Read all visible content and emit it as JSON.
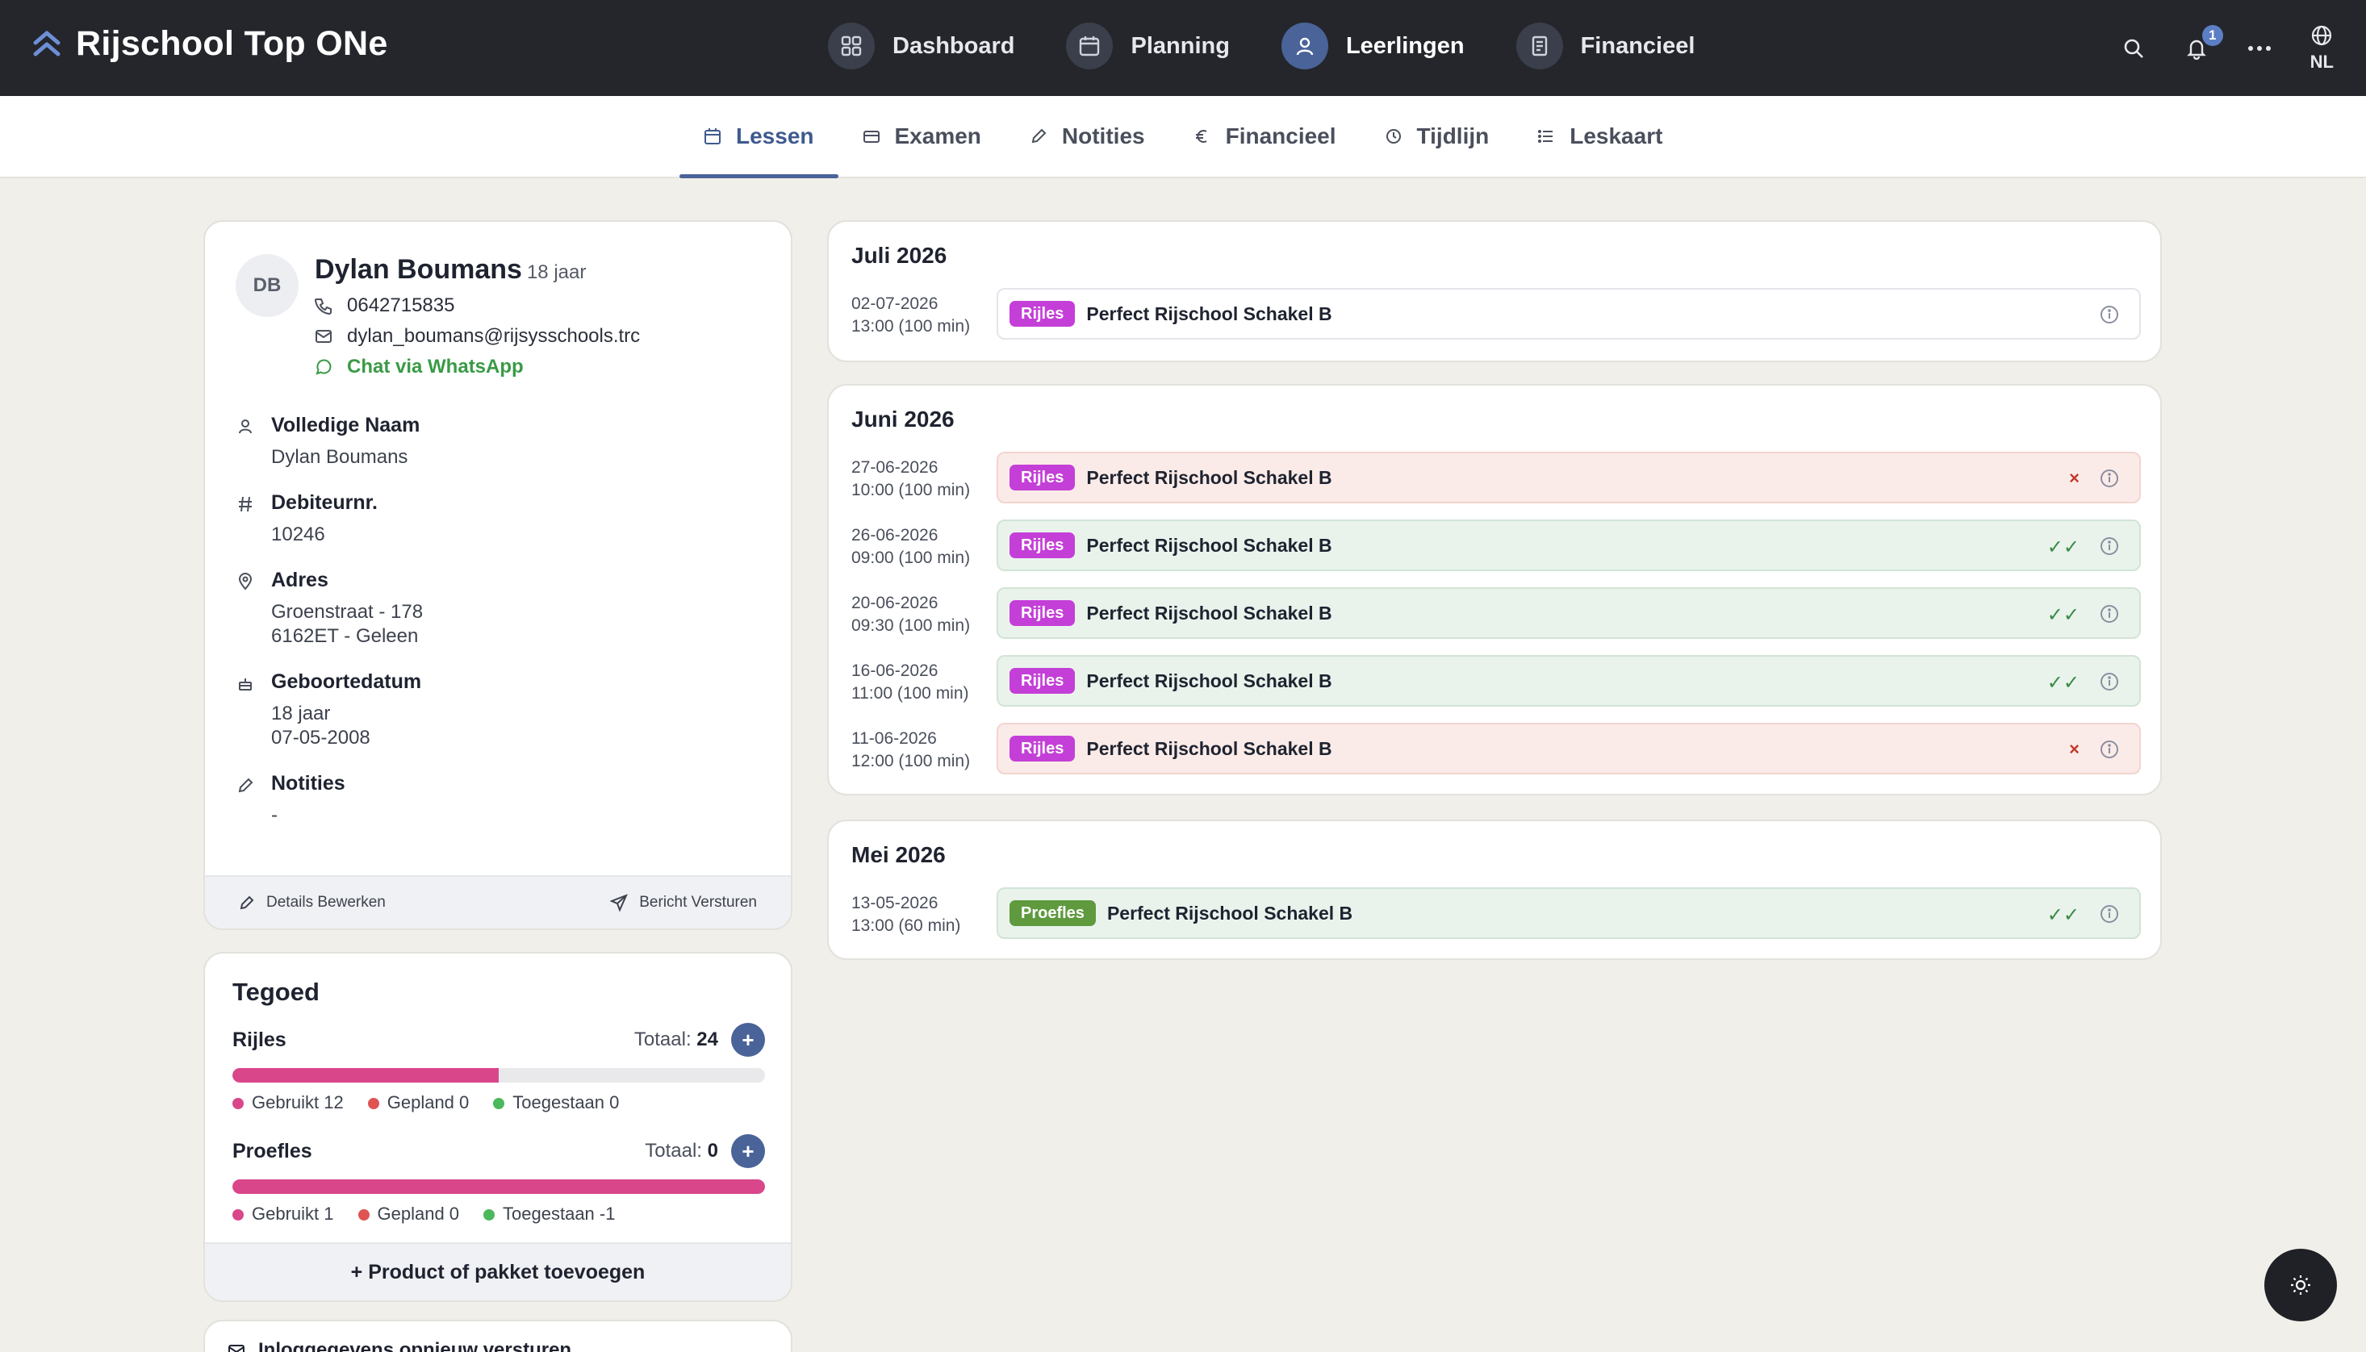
{
  "app": {
    "name": "Rijschool Top ONe"
  },
  "nav": {
    "dashboard": "Dashboard",
    "planning": "Planning",
    "leerlingen": "Leerlingen",
    "financieel": "Financieel"
  },
  "topbar": {
    "notification_count": "1",
    "language": "NL"
  },
  "tabs": {
    "lessen": "Lessen",
    "examen": "Examen",
    "notities": "Notities",
    "financieel": "Financieel",
    "tijdlijn": "Tijdlijn",
    "leskaart": "Leskaart"
  },
  "student": {
    "initials": "DB",
    "name": "Dylan Boumans",
    "age": "18 jaar",
    "phone": "0642715835",
    "email": "dylan_boumans@rijsysschools.trc",
    "whatsapp": "Chat via WhatsApp",
    "fields": {
      "full_name_label": "Volledige Naam",
      "full_name": "Dylan Boumans",
      "debtor_label": "Debiteurnr.",
      "debtor": "10246",
      "address_label": "Adres",
      "address_line1": "Groenstraat - 178",
      "address_line2": "6162ET - Geleen",
      "birth_label": "Geboortedatum",
      "birth_age": "18 jaar",
      "birth_date": "07-05-2008",
      "notes_label": "Notities",
      "notes": "-"
    },
    "edit_button": "Details Bewerken",
    "message_button": "Bericht Versturen"
  },
  "tegoed": {
    "title": "Tegoed",
    "total_label": "Totaal:",
    "rijles": {
      "name": "Rijles",
      "total": "24",
      "used_fraction": 0.5,
      "gebruikt": "Gebruikt 12",
      "gepland": "Gepland 0",
      "toegestaan": "Toegestaan 0"
    },
    "proefles": {
      "name": "Proefles",
      "total": "0",
      "used_fraction": 1.0,
      "gebruikt": "Gebruikt 1",
      "gepland": "Gepland 0",
      "toegestaan": "Toegestaan -1"
    },
    "add_product": "+ Product of pakket toevoegen",
    "resend_login": "Inloggegevens opnieuw versturen"
  },
  "colors": {
    "used": "#d9468a",
    "planned": "#e05353",
    "allowed": "#4cb85c",
    "accent": "#4a6398"
  },
  "lessons": {
    "juli": {
      "title": "Juli 2026",
      "items": [
        {
          "date": "02-07-2026",
          "time": "13:00 (100 min)",
          "type": "Rijles",
          "title": "Perfect Rijschool Schakel B",
          "status": ""
        }
      ]
    },
    "juni": {
      "title": "Juni 2026",
      "items": [
        {
          "date": "27-06-2026",
          "time": "10:00 (100 min)",
          "type": "Rijles",
          "title": "Perfect Rijschool Schakel B",
          "status": "×"
        },
        {
          "date": "26-06-2026",
          "time": "09:00 (100 min)",
          "type": "Rijles",
          "title": "Perfect Rijschool Schakel B",
          "status": "✓✓"
        },
        {
          "date": "20-06-2026",
          "time": "09:30 (100 min)",
          "type": "Rijles",
          "title": "Perfect Rijschool Schakel B",
          "status": "✓✓"
        },
        {
          "date": "16-06-2026",
          "time": "11:00 (100 min)",
          "type": "Rijles",
          "title": "Perfect Rijschool Schakel B",
          "status": "✓✓"
        },
        {
          "date": "11-06-2026",
          "time": "12:00 (100 min)",
          "type": "Rijles",
          "title": "Perfect Rijschool Schakel B",
          "status": "×"
        }
      ]
    },
    "mei": {
      "title": "Mei 2026",
      "items": [
        {
          "date": "13-05-2026",
          "time": "13:00 (60 min)",
          "type": "Proefles",
          "title": "Perfect Rijschool Schakel B",
          "status": "✓✓"
        }
      ]
    }
  }
}
